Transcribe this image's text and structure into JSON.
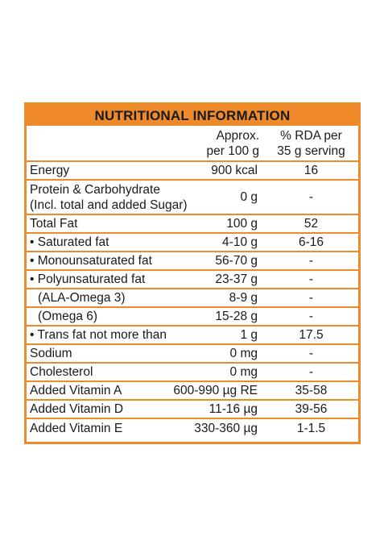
{
  "table": {
    "title": "NUTRITIONAL INFORMATION",
    "col2_header_line1": "Approx.",
    "col2_header_line2": "per 100 g",
    "col3_header_line1": "% RDA per",
    "col3_header_line2": "35 g serving",
    "rows": [
      {
        "name": "Energy",
        "approx": "900 kcal",
        "rda": "16"
      },
      {
        "name_line1": "Protein & Carbohydrate",
        "name_line2": "(Incl. total and added Sugar)",
        "approx": "0 g",
        "rda": "-"
      },
      {
        "name": "Total Fat",
        "approx": "100 g",
        "rda": "52"
      },
      {
        "name": "• Saturated fat",
        "approx": "4-10 g",
        "rda": "6-16"
      },
      {
        "name": "• Monounsaturated fat",
        "approx": "56-70 g",
        "rda": "-"
      },
      {
        "name": "• Polyunsaturated fat",
        "approx": "23-37 g",
        "rda": "-"
      },
      {
        "name": "(ALA-Omega 3)",
        "approx": "8-9 g",
        "rda": "-"
      },
      {
        "name": "(Omega 6)",
        "approx": "15-28 g",
        "rda": "-"
      },
      {
        "name": "• Trans fat not more than",
        "approx": "1 g",
        "rda": "17.5"
      },
      {
        "name": "Sodium",
        "approx": "0 mg",
        "rda": "-"
      },
      {
        "name": "Cholesterol",
        "approx": "0 mg",
        "rda": "-"
      },
      {
        "name": "Added Vitamin A",
        "approx": "600-990 µg RE",
        "rda": "35-58"
      },
      {
        "name": "Added Vitamin D",
        "approx": "11-16 µg",
        "rda": "39-56"
      },
      {
        "name": "Added Vitamin E",
        "approx": "330-360 µg",
        "rda": "1-1.5"
      }
    ]
  },
  "colors": {
    "accent": "#ee8a2a",
    "text": "#1a1a1a",
    "background": "#ffffff"
  }
}
